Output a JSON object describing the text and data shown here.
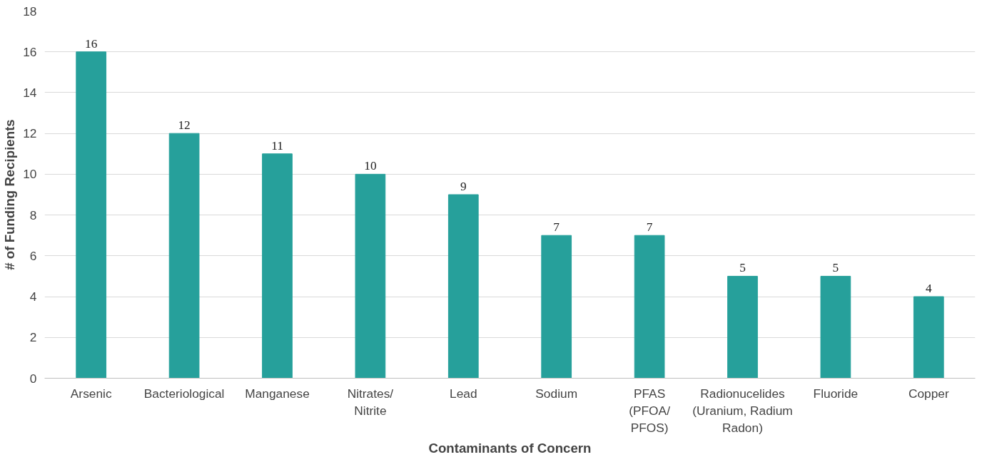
{
  "chart_data": {
    "type": "bar",
    "xlabel": "Contaminants of Concern",
    "ylabel": "# of Funding Recipients",
    "categories": [
      "Arsenic",
      "Bacteriological",
      "Manganese",
      "Nitrates/\nNitrite",
      "Lead",
      "Sodium",
      "PFAS\n(PFOA/\nPFOS)",
      "Radionucelides\n(Uranium, Radium\nRadon)",
      "Fluoride",
      "Copper"
    ],
    "values": [
      16,
      12,
      11,
      10,
      9,
      7,
      7,
      5,
      5,
      4
    ],
    "color": "#26a09b",
    "ylim": [
      0,
      18
    ],
    "yticks": [
      0,
      2,
      4,
      6,
      8,
      10,
      12,
      14,
      16,
      18
    ],
    "grid": "y",
    "data_labels": true
  }
}
